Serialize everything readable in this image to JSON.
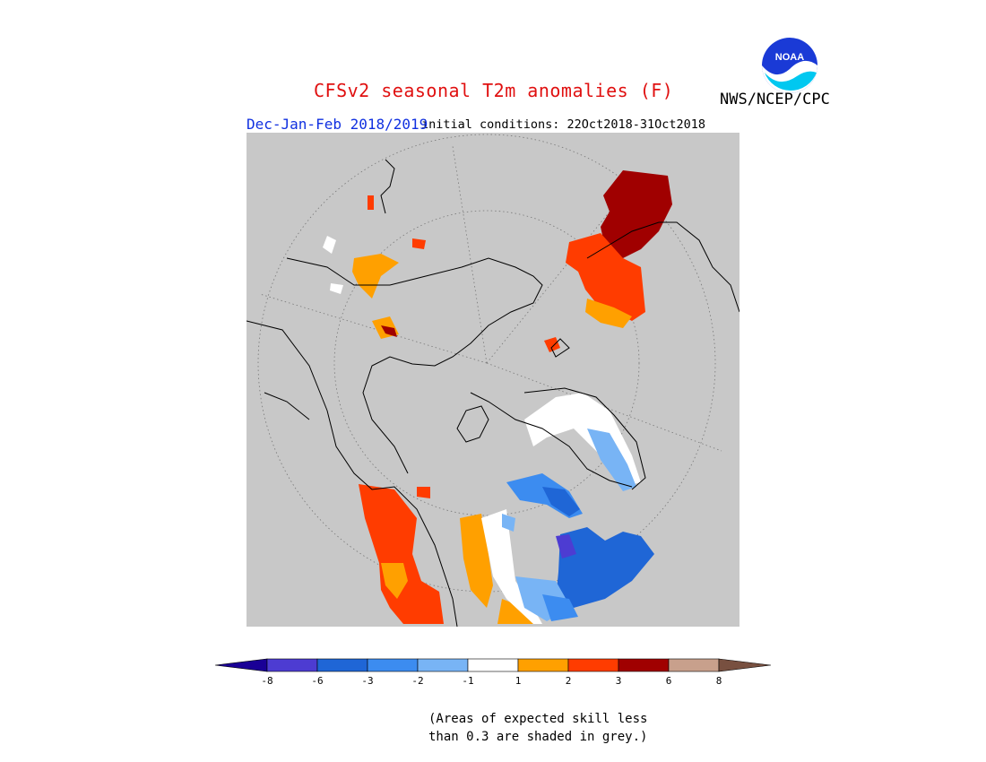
{
  "header": {
    "title": "CFSv2 seasonal T2m anomalies (F)",
    "org": "NWS/NCEP/CPC",
    "season": "Dec-Jan-Feb 2018/2019",
    "initial_conditions": "initial conditions: 22Oct2018-31Oct2018",
    "logo_text": "NOAA"
  },
  "legend": {
    "bins": [
      {
        "range": "< -8",
        "color": "#1a0096"
      },
      {
        "range": "-8 to -6",
        "color": "#4d3cd2"
      },
      {
        "range": "-6 to -3",
        "color": "#1f66d6"
      },
      {
        "range": "-3 to -2",
        "color": "#3c8cf0"
      },
      {
        "range": "-2 to -1",
        "color": "#78b4f5"
      },
      {
        "range": "-1 to 1",
        "color": "#ffffff"
      },
      {
        "range": "1 to 2",
        "color": "#ffa000"
      },
      {
        "range": "2 to 3",
        "color": "#ff3c00"
      },
      {
        "range": "3 to 6",
        "color": "#a00000"
      },
      {
        "range": "6 to 8",
        "color": "#c8a08c"
      },
      {
        "range": "> 8",
        "color": "#785040"
      }
    ],
    "tick_labels": [
      "-8",
      "-6",
      "-3",
      "-2",
      "-1",
      "1",
      "2",
      "3",
      "6",
      "8"
    ]
  },
  "note": "(Areas of expected skill less\nthan 0.3 are shaded in grey.)",
  "colors": {
    "mask_grey": "#c8c8c8",
    "title_red": "#e01010",
    "season_blue": "#1030e0"
  }
}
